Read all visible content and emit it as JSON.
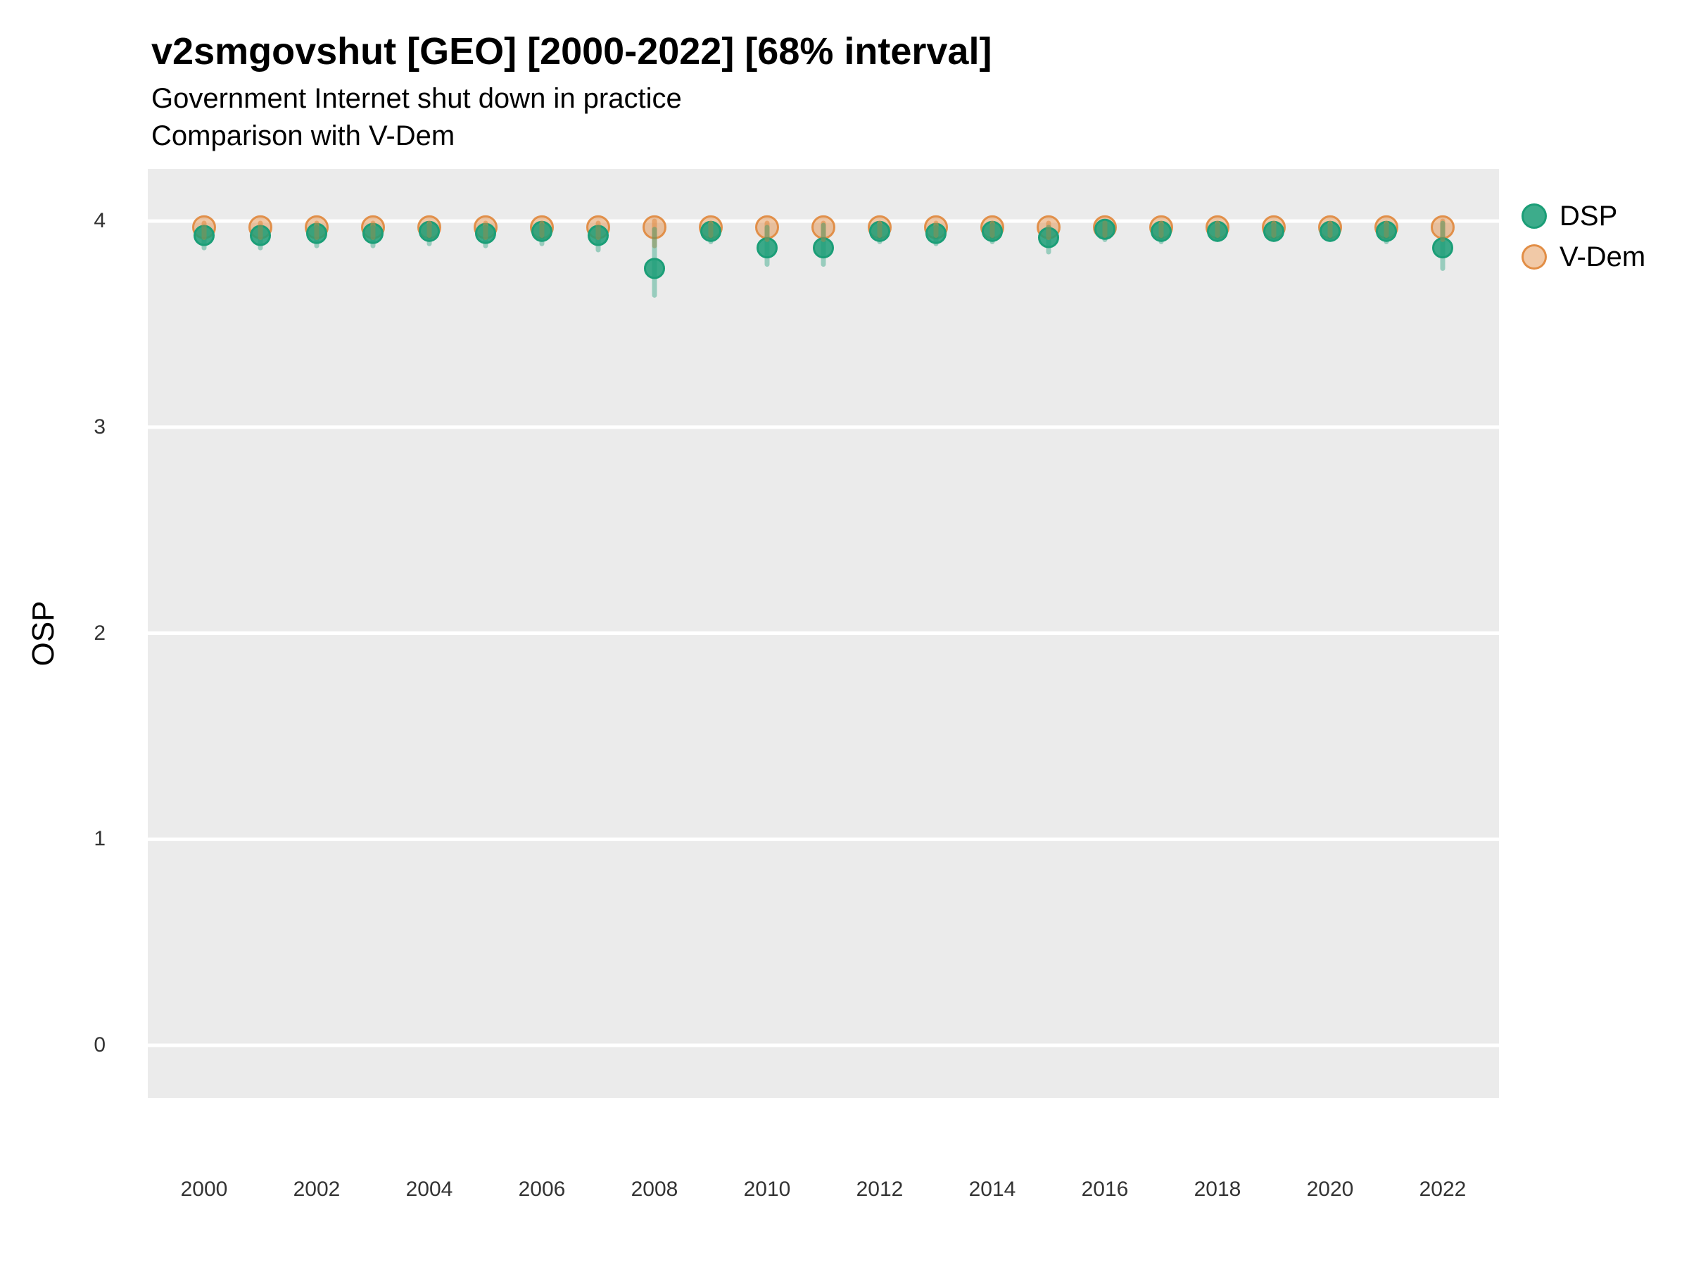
{
  "chart_data": {
    "type": "scatter",
    "title": "v2smgovshut [GEO] [2000-2022] [68% interval]",
    "subtitle1": "Government Internet shut down in practice",
    "subtitle2": "Comparison with V-Dem",
    "interval_label": "68% interval",
    "xlabel": "",
    "ylabel": "OSP",
    "x_domain": [
      1999,
      2023
    ],
    "y_domain": [
      -0.256,
      4.253
    ],
    "x_ticks": [
      2000,
      2002,
      2004,
      2006,
      2008,
      2010,
      2012,
      2014,
      2016,
      2018,
      2020,
      2022
    ],
    "y_ticks": [
      0,
      1,
      2,
      3,
      4
    ],
    "grid": "white-major-on-gray-panel",
    "panel_color": "#EBEBEB",
    "gridline_color": "#FFFFFF",
    "legend_position": "right",
    "series": [
      {
        "name": "V-Dem",
        "color": "#e0873c",
        "stroke_opacity": 0.9,
        "fill_opacity": 0.45,
        "bar_opacity": 0.55,
        "points": [
          {
            "year": 2000,
            "value": 3.97,
            "lo": 3.92,
            "hi": 3.99
          },
          {
            "year": 2001,
            "value": 3.97,
            "lo": 3.92,
            "hi": 3.99
          },
          {
            "year": 2002,
            "value": 3.97,
            "lo": 3.92,
            "hi": 3.99
          },
          {
            "year": 2003,
            "value": 3.97,
            "lo": 3.92,
            "hi": 3.99
          },
          {
            "year": 2004,
            "value": 3.97,
            "lo": 3.93,
            "hi": 3.99
          },
          {
            "year": 2005,
            "value": 3.97,
            "lo": 3.92,
            "hi": 3.99
          },
          {
            "year": 2006,
            "value": 3.97,
            "lo": 3.93,
            "hi": 3.99
          },
          {
            "year": 2007,
            "value": 3.97,
            "lo": 3.92,
            "hi": 3.99
          },
          {
            "year": 2008,
            "value": 3.97,
            "lo": 3.88,
            "hi": 4.0
          },
          {
            "year": 2009,
            "value": 3.97,
            "lo": 3.93,
            "hi": 3.99
          },
          {
            "year": 2010,
            "value": 3.97,
            "lo": 3.91,
            "hi": 3.99
          },
          {
            "year": 2011,
            "value": 3.97,
            "lo": 3.91,
            "hi": 3.99
          },
          {
            "year": 2012,
            "value": 3.97,
            "lo": 3.93,
            "hi": 3.99
          },
          {
            "year": 2013,
            "value": 3.97,
            "lo": 3.93,
            "hi": 3.99
          },
          {
            "year": 2014,
            "value": 3.97,
            "lo": 3.93,
            "hi": 3.99
          },
          {
            "year": 2015,
            "value": 3.97,
            "lo": 3.92,
            "hi": 3.99
          },
          {
            "year": 2016,
            "value": 3.97,
            "lo": 3.93,
            "hi": 3.99
          },
          {
            "year": 2017,
            "value": 3.97,
            "lo": 3.93,
            "hi": 3.99
          },
          {
            "year": 2018,
            "value": 3.97,
            "lo": 3.93,
            "hi": 3.99
          },
          {
            "year": 2019,
            "value": 3.97,
            "lo": 3.93,
            "hi": 3.99
          },
          {
            "year": 2020,
            "value": 3.97,
            "lo": 3.93,
            "hi": 3.99
          },
          {
            "year": 2021,
            "value": 3.97,
            "lo": 3.93,
            "hi": 3.99
          },
          {
            "year": 2022,
            "value": 3.97,
            "lo": 3.91,
            "hi": 4.0
          }
        ]
      },
      {
        "name": "DSP",
        "color": "#1b9e77",
        "stroke_opacity": 1.0,
        "fill_opacity": 0.85,
        "bar_opacity": 0.4,
        "points": [
          {
            "year": 2000,
            "value": 3.93,
            "lo": 3.87,
            "hi": 3.97
          },
          {
            "year": 2001,
            "value": 3.93,
            "lo": 3.87,
            "hi": 3.97
          },
          {
            "year": 2002,
            "value": 3.94,
            "lo": 3.88,
            "hi": 3.97
          },
          {
            "year": 2003,
            "value": 3.94,
            "lo": 3.88,
            "hi": 3.97
          },
          {
            "year": 2004,
            "value": 3.95,
            "lo": 3.89,
            "hi": 3.98
          },
          {
            "year": 2005,
            "value": 3.94,
            "lo": 3.88,
            "hi": 3.97
          },
          {
            "year": 2006,
            "value": 3.95,
            "lo": 3.89,
            "hi": 3.98
          },
          {
            "year": 2007,
            "value": 3.93,
            "lo": 3.86,
            "hi": 3.97
          },
          {
            "year": 2008,
            "value": 3.77,
            "lo": 3.64,
            "hi": 3.96
          },
          {
            "year": 2009,
            "value": 3.95,
            "lo": 3.9,
            "hi": 3.98
          },
          {
            "year": 2010,
            "value": 3.87,
            "lo": 3.79,
            "hi": 3.97
          },
          {
            "year": 2011,
            "value": 3.87,
            "lo": 3.79,
            "hi": 3.98
          },
          {
            "year": 2012,
            "value": 3.95,
            "lo": 3.9,
            "hi": 3.98
          },
          {
            "year": 2013,
            "value": 3.94,
            "lo": 3.89,
            "hi": 3.97
          },
          {
            "year": 2014,
            "value": 3.95,
            "lo": 3.9,
            "hi": 3.98
          },
          {
            "year": 2015,
            "value": 3.92,
            "lo": 3.85,
            "hi": 3.97
          },
          {
            "year": 2016,
            "value": 3.96,
            "lo": 3.91,
            "hi": 3.99
          },
          {
            "year": 2017,
            "value": 3.95,
            "lo": 3.9,
            "hi": 3.98
          },
          {
            "year": 2018,
            "value": 3.95,
            "lo": 3.91,
            "hi": 3.98
          },
          {
            "year": 2019,
            "value": 3.95,
            "lo": 3.91,
            "hi": 3.98
          },
          {
            "year": 2020,
            "value": 3.95,
            "lo": 3.91,
            "hi": 3.98
          },
          {
            "year": 2021,
            "value": 3.95,
            "lo": 3.9,
            "hi": 3.98
          },
          {
            "year": 2022,
            "value": 3.87,
            "lo": 3.77,
            "hi": 3.99
          }
        ]
      }
    ],
    "legend": [
      {
        "label": "DSP",
        "color": "#1b9e77"
      },
      {
        "label": "V-Dem",
        "color": "#e0873c"
      }
    ]
  }
}
